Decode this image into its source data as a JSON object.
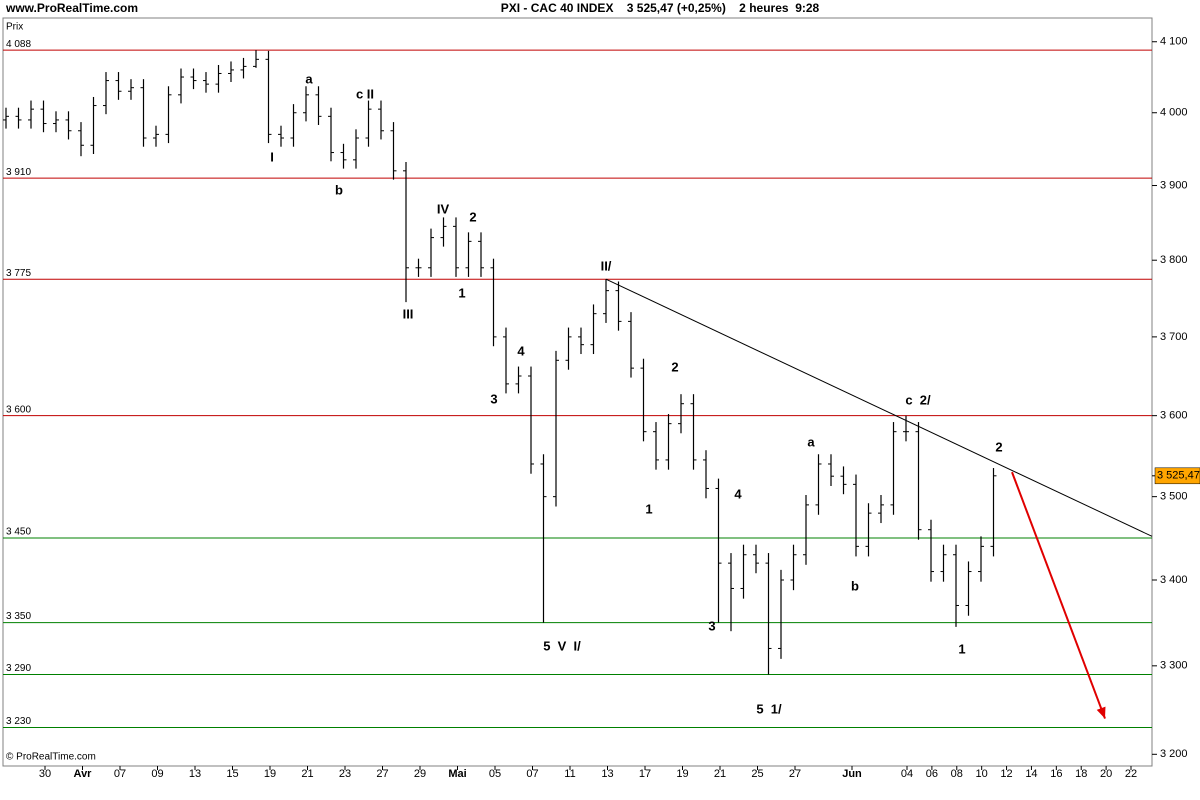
{
  "header": {
    "site": "www.ProRealTime.com",
    "title": "PXI - CAC 40 INDEX    3 525,47 (+0,25%)    2 heures  9:28",
    "footer": "© ProRealTime.com"
  },
  "chart_data": {
    "type": "ohlc",
    "y_label": "Prix",
    "log_scale": true,
    "color": "#000000",
    "ylim": [
      3187,
      4134
    ],
    "yticks": [
      {
        "value": 3200,
        "label": "3 200"
      },
      {
        "value": 3300,
        "label": "3 300"
      },
      {
        "value": 3400,
        "label": "3 400"
      },
      {
        "value": 3500,
        "label": "3 500"
      },
      {
        "value": 3600,
        "label": "3 600"
      },
      {
        "value": 3700,
        "label": "3 700"
      },
      {
        "value": 3800,
        "label": "3 800"
      },
      {
        "value": 3900,
        "label": "3 900"
      },
      {
        "value": 4000,
        "label": "4 000"
      },
      {
        "value": 4100,
        "label": "4 100"
      }
    ],
    "x_labels": [
      "30",
      "Avr",
      "07",
      "09",
      "13",
      "15",
      "19",
      "21",
      "23",
      "27",
      "29",
      "Mai",
      "05",
      "07",
      "11",
      "13",
      "17",
      "19",
      "21",
      "25",
      "27",
      "Jun",
      "04",
      "06",
      "08",
      "10",
      "12",
      "14",
      "16",
      "18",
      "20",
      "22"
    ],
    "open": [
      3990,
      3995,
      3990,
      4005,
      3985,
      3990,
      3975,
      3955,
      4010,
      4045,
      4030,
      4035,
      3965,
      3970,
      4025,
      4050,
      4045,
      4040,
      4055,
      4060,
      4065,
      4075,
      3970,
      3965,
      4000,
      4025,
      3995,
      3945,
      3935,
      3965,
      4005,
      3975,
      3920,
      3790,
      3790,
      3830,
      3845,
      3790,
      3825,
      3790,
      3700,
      3640,
      3650,
      3540,
      3500,
      3670,
      3700,
      3690,
      3730,
      3760,
      3720,
      3660,
      3580,
      3545,
      3590,
      3615,
      3545,
      3510,
      3420,
      3390,
      3430,
      3420,
      3320,
      3400,
      3430,
      3490,
      3540,
      3525,
      3515,
      3440,
      3480,
      3490,
      3580,
      3580,
      3460,
      3410,
      3430,
      3370,
      3410,
      3440
    ],
    "high": [
      4007,
      4007,
      4017,
      4017,
      4002,
      4002,
      3987,
      4022,
      4057,
      4057,
      4047,
      4047,
      3982,
      4037,
      4062,
      4062,
      4057,
      4067,
      4072,
      4077,
      4088,
      4087,
      3982,
      4012,
      4037,
      4037,
      4007,
      3957,
      3977,
      4017,
      4017,
      3987,
      3932,
      3802,
      3842,
      3857,
      3857,
      3837,
      3837,
      3802,
      3712,
      3662,
      3662,
      3552,
      3682,
      3712,
      3712,
      3742,
      3775,
      3772,
      3732,
      3672,
      3592,
      3602,
      3627,
      3627,
      3557,
      3522,
      3432,
      3442,
      3442,
      3432,
      3412,
      3442,
      3502,
      3552,
      3552,
      3537,
      3527,
      3492,
      3502,
      3592,
      3600,
      3592,
      3472,
      3442,
      3442,
      3422,
      3452,
      3535
    ],
    "low": [
      3978,
      3978,
      3978,
      3973,
      3973,
      3963,
      3940,
      3943,
      3998,
      4018,
      4018,
      3953,
      3953,
      3958,
      4013,
      4033,
      4028,
      4028,
      4043,
      4048,
      4063,
      3958,
      3953,
      3953,
      3988,
      3983,
      3933,
      3923,
      3923,
      3953,
      3963,
      3908,
      3745,
      3778,
      3778,
      3818,
      3778,
      3778,
      3778,
      3688,
      3628,
      3628,
      3528,
      3350,
      3488,
      3658,
      3678,
      3678,
      3718,
      3708,
      3648,
      3568,
      3533,
      3533,
      3578,
      3533,
      3498,
      3350,
      3340,
      3378,
      3408,
      3290,
      3308,
      3388,
      3418,
      3478,
      3513,
      3503,
      3428,
      3428,
      3468,
      3478,
      3568,
      3448,
      3398,
      3398,
      3345,
      3358,
      3398,
      3428
    ],
    "close": [
      3995,
      3990,
      4005,
      3985,
      3990,
      3975,
      3955,
      4010,
      4045,
      4030,
      4035,
      3965,
      3970,
      4025,
      4050,
      4045,
      4040,
      4055,
      4060,
      4065,
      4075,
      3970,
      3965,
      4000,
      4025,
      3995,
      3945,
      3935,
      3965,
      4005,
      3975,
      3920,
      3790,
      3790,
      3830,
      3845,
      3790,
      3825,
      3790,
      3700,
      3640,
      3650,
      3540,
      3500,
      3670,
      3700,
      3690,
      3730,
      3760,
      3720,
      3660,
      3580,
      3545,
      3590,
      3615,
      3545,
      3510,
      3420,
      3390,
      3430,
      3420,
      3320,
      3400,
      3430,
      3490,
      3540,
      3525,
      3515,
      3440,
      3480,
      3490,
      3580,
      3580,
      3460,
      3410,
      3430,
      3370,
      3410,
      3440,
      3525.47
    ],
    "levels": [
      {
        "value": 4088,
        "label": "4 088",
        "color": "#c00000"
      },
      {
        "value": 3910,
        "label": "3 910",
        "color": "#c00000"
      },
      {
        "value": 3775,
        "label": "3 775",
        "color": "#c00000"
      },
      {
        "value": 3600,
        "label": "3 600",
        "color": "#c00000"
      },
      {
        "value": 3450,
        "label": "3 450",
        "color": "#008000"
      },
      {
        "value": 3350,
        "label": "3 350",
        "color": "#008000"
      },
      {
        "value": 3290,
        "label": "3 290",
        "color": "#008000"
      },
      {
        "value": 3230,
        "label": "3 230",
        "color": "#008000"
      }
    ],
    "last_price": {
      "value": 3525.47,
      "label": "3 525,47",
      "color": "#ffa500"
    },
    "trendline": {
      "color": "#000000",
      "values": [
        3775,
        3452
      ]
    },
    "arrow": {
      "color": "#e00000",
      "values": [
        3530,
        3240
      ]
    },
    "annotations": [
      "a",
      "I",
      "b",
      "c II",
      "IV",
      "2",
      "III",
      "1",
      "II/",
      "4",
      "3",
      "5  V  I/",
      "2",
      "1",
      "4",
      "3",
      "5  1/",
      "a",
      "b",
      "c  2/",
      "2",
      "1"
    ]
  }
}
